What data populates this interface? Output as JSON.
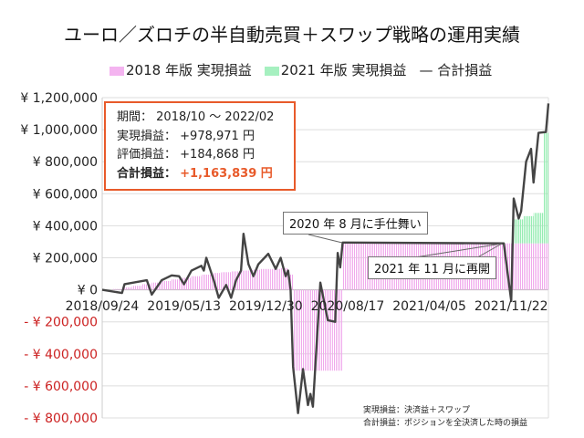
{
  "title": "ユーロ／ズロチの半自動売買＋スワップ戦略の運用実績",
  "legend": [
    {
      "label": "2018 年版 実現損益",
      "color": "#f4b4f0",
      "type": "bar"
    },
    {
      "label": "2021 年版 実現損益",
      "color": "#a6f0c0",
      "type": "bar"
    },
    {
      "label": "合計損益",
      "color": "#444444",
      "type": "line"
    }
  ],
  "infobox": {
    "period_label": "期間：",
    "period_value": "2018/10 ～ 2022/02",
    "realized_label": "実現損益：",
    "realized_value": "+978,971 円",
    "unrealized_label": "評価損益：",
    "unrealized_value": "+184,868 円",
    "total_label": "合計損益：",
    "total_value": "+1,163,839 円"
  },
  "annotations": [
    "2020 年 8 月に手仕舞い",
    "2021 年 11 月に再開"
  ],
  "notes": [
    "実現損益：決済益＋スワップ",
    "合計損益：ポジションを全決済した時の損益"
  ],
  "chart_data": {
    "type": "bar+line",
    "xlim": [
      "2018/09/24",
      "2022/03/07"
    ],
    "ylim": [
      -800000,
      1200000
    ],
    "grid": true,
    "legend_placement": "top",
    "yticks": [
      1200000,
      1000000,
      800000,
      600000,
      400000,
      200000,
      0,
      -200000,
      -400000,
      -600000,
      -800000
    ],
    "ytick_labels": [
      "¥ 1,200,000",
      "¥ 1,000,000",
      "¥ 800,000",
      "¥ 600,000",
      "¥ 400,000",
      "¥ 200,000",
      "¥ 0",
      "- ¥ 200,000",
      "- ¥ 400,000",
      "- ¥ 600,000",
      "- ¥ 800,000"
    ],
    "xtick_labels": [
      "2018/09/24",
      "2019/05/13",
      "2019/12/30",
      "2020/08/17",
      "2021/04/05",
      "2021/11/22"
    ],
    "negative_label_color": "#cc2222",
    "bars_2018": [
      [
        "2018/09/24",
        0
      ],
      [
        "2018/10/22",
        5000
      ],
      [
        "2018/11/19",
        15000
      ],
      [
        "2018/12/17",
        25000
      ],
      [
        "2019/01/14",
        35000
      ],
      [
        "2019/02/11",
        45000
      ],
      [
        "2019/03/11",
        55000
      ],
      [
        "2019/04/08",
        65000
      ],
      [
        "2019/05/06",
        75000
      ],
      [
        "2019/06/03",
        85000
      ],
      [
        "2019/07/01",
        95000
      ],
      [
        "2019/07/29",
        105000
      ],
      [
        "2019/08/26",
        110000
      ],
      [
        "2019/09/23",
        115000
      ],
      [
        "2019/10/21",
        120000
      ],
      [
        "2019/11/18",
        125000
      ],
      [
        "2019/12/16",
        130000
      ],
      [
        "2020/01/13",
        130000
      ],
      [
        "2020/02/10",
        135000
      ],
      [
        "2020/03/02",
        95000
      ],
      [
        "2020/03/16",
        -505000
      ],
      [
        "2020/04/13",
        -505000
      ],
      [
        "2020/05/11",
        -505000
      ],
      [
        "2020/06/08",
        -505000
      ],
      [
        "2020/07/06",
        -505000
      ],
      [
        "2020/08/03",
        290000
      ],
      [
        "2020/12/28",
        290000
      ],
      [
        "2021/05/24",
        290000
      ],
      [
        "2021/10/18",
        290000
      ],
      [
        "2022/03/07",
        290000
      ]
    ],
    "bars_2021": [
      [
        "2021/11/29",
        150000
      ],
      [
        "2021/12/27",
        170000
      ],
      [
        "2022/01/24",
        190000
      ],
      [
        "2022/02/21",
        690000
      ],
      [
        "2022/03/07",
        690000
      ]
    ],
    "line_total": [
      [
        "2018/09/24",
        0
      ],
      [
        "2018/11/19",
        -20000
      ],
      [
        "2018/11/26",
        35000
      ],
      [
        "2019/01/28",
        60000
      ],
      [
        "2019/02/11",
        -30000
      ],
      [
        "2019/03/11",
        60000
      ],
      [
        "2019/04/08",
        90000
      ],
      [
        "2019/04/29",
        85000
      ],
      [
        "2019/05/13",
        35000
      ],
      [
        "2019/06/03",
        120000
      ],
      [
        "2019/07/01",
        150000
      ],
      [
        "2019/07/08",
        120000
      ],
      [
        "2019/07/15",
        200000
      ],
      [
        "2019/08/05",
        60000
      ],
      [
        "2019/08/19",
        -50000
      ],
      [
        "2019/09/09",
        30000
      ],
      [
        "2019/09/23",
        -50000
      ],
      [
        "2019/10/07",
        60000
      ],
      [
        "2019/10/21",
        120000
      ],
      [
        "2019/10/28",
        350000
      ],
      [
        "2019/11/11",
        160000
      ],
      [
        "2019/11/25",
        85000
      ],
      [
        "2019/12/09",
        160000
      ],
      [
        "2020/01/06",
        225000
      ],
      [
        "2020/01/27",
        130000
      ],
      [
        "2020/02/10",
        200000
      ],
      [
        "2020/02/24",
        85000
      ],
      [
        "2020/03/02",
        120000
      ],
      [
        "2020/03/09",
        0
      ],
      [
        "2020/03/16",
        -480000
      ],
      [
        "2020/03/30",
        -770000
      ],
      [
        "2020/04/13",
        -495000
      ],
      [
        "2020/04/27",
        -720000
      ],
      [
        "2020/05/04",
        -650000
      ],
      [
        "2020/05/11",
        -730000
      ],
      [
        "2020/06/01",
        45000
      ],
      [
        "2020/06/22",
        -190000
      ],
      [
        "2020/07/13",
        -200000
      ],
      [
        "2020/07/20",
        230000
      ],
      [
        "2020/07/27",
        140000
      ],
      [
        "2020/08/03",
        295000
      ],
      [
        "2021/11/01",
        290000
      ],
      [
        "2021/11/22",
        -70000
      ],
      [
        "2021/11/29",
        570000
      ],
      [
        "2021/12/13",
        445000
      ],
      [
        "2021/12/20",
        490000
      ],
      [
        "2022/01/03",
        800000
      ],
      [
        "2022/01/17",
        880000
      ],
      [
        "2022/01/24",
        670000
      ],
      [
        "2022/02/07",
        980000
      ],
      [
        "2022/02/28",
        985000
      ],
      [
        "2022/03/07",
        1163839
      ]
    ]
  }
}
